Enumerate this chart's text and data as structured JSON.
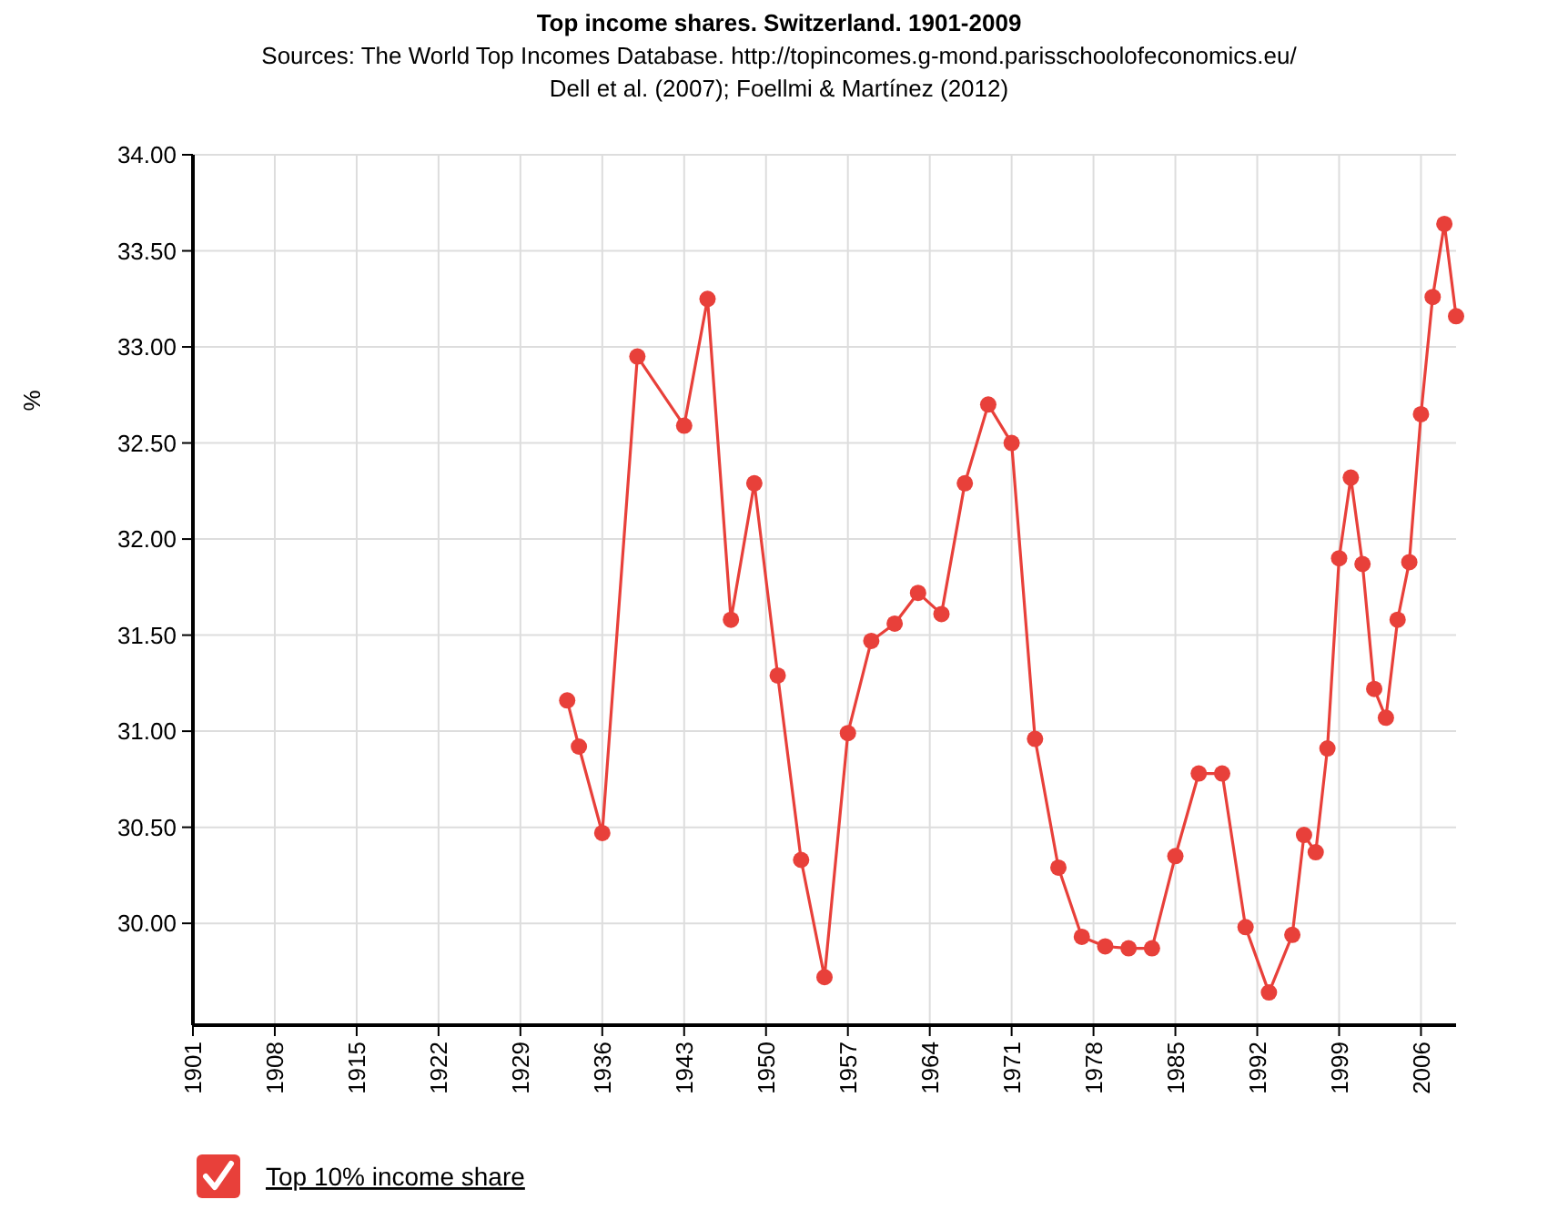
{
  "chart_data": {
    "type": "line",
    "title": "Top income shares. Switzerland. 1901-2009",
    "subtitle": "Sources: The World Top Incomes Database. http://topincomes.g-mond.parisschoolofeconomics.eu/\nDell et al. (2007); Foellmi & Martínez (2012)",
    "ylabel": "%",
    "xlim": [
      1901,
      2009
    ],
    "xticks": [
      1901,
      1908,
      1915,
      1922,
      1929,
      1936,
      1943,
      1950,
      1957,
      1964,
      1971,
      1978,
      1985,
      1992,
      1999,
      2006
    ],
    "ylim": [
      29.47,
      34
    ],
    "yticks": [
      {
        "value": 30,
        "label": "30.00"
      },
      {
        "value": 30.5,
        "label": "30.50"
      },
      {
        "value": 31,
        "label": "31.00"
      },
      {
        "value": 31.5,
        "label": "31.50"
      },
      {
        "value": 32,
        "label": "32.00"
      },
      {
        "value": 32.5,
        "label": "32.50"
      },
      {
        "value": 33,
        "label": "33.00"
      },
      {
        "value": 33.5,
        "label": "33.50"
      },
      {
        "value": 34,
        "label": "34.00"
      }
    ],
    "grid": true,
    "legend": "bottom left",
    "marker": "circle",
    "line_style": "solid",
    "x": [
      1933,
      1934,
      1936,
      1939,
      1943,
      1945,
      1947,
      1949,
      1951,
      1953,
      1955,
      1957,
      1959,
      1961,
      1963,
      1965,
      1967,
      1969,
      1971,
      1973,
      1975,
      1977,
      1979,
      1981,
      1983,
      1985,
      1987,
      1989,
      1991,
      1993,
      1995,
      1996,
      1997,
      1998,
      1999,
      2000,
      2001,
      2002,
      2003,
      2004,
      2005,
      2006,
      2007,
      2008,
      2009
    ],
    "series": [
      {
        "name": "Top 10% income share",
        "color": "#e8403a",
        "values": [
          31.16,
          30.92,
          30.47,
          32.95,
          32.59,
          33.25,
          31.58,
          32.29,
          31.29,
          30.33,
          29.72,
          30.99,
          31.47,
          31.56,
          31.72,
          31.61,
          32.29,
          32.7,
          32.5,
          30.96,
          30.29,
          29.93,
          29.88,
          29.87,
          29.87,
          30.35,
          30.78,
          30.78,
          29.98,
          29.64,
          29.94,
          30.46,
          30.37,
          30.91,
          31.9,
          32.32,
          31.87,
          31.22,
          31.07,
          31.58,
          31.88,
          32.65,
          33.26,
          33.64,
          33.16
        ]
      }
    ]
  }
}
